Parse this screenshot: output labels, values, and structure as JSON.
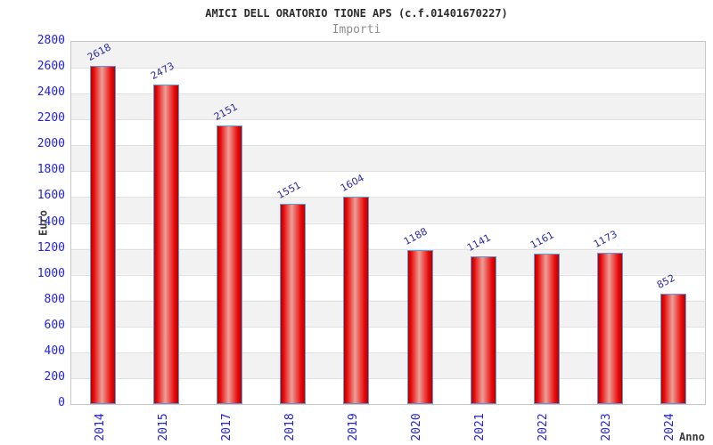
{
  "header": {
    "title": "AMICI DELL ORATORIO TIONE APS (c.f.01401670227)",
    "subtitle": "Importi"
  },
  "chart_data": {
    "type": "bar",
    "title": "AMICI DELL ORATORIO TIONE APS (c.f.01401670227)",
    "subtitle": "Importi",
    "xlabel": "Anno",
    "ylabel": "Euro",
    "categories": [
      "2014",
      "2015",
      "2017",
      "2018",
      "2019",
      "2020",
      "2021",
      "2022",
      "2023",
      "2024"
    ],
    "values": [
      2618,
      2473,
      2151,
      1551,
      1604,
      1188,
      1141,
      1161,
      1173,
      852
    ],
    "ylim": [
      0,
      2800
    ],
    "ytick_step": 200,
    "grid": true,
    "legend_position": "none",
    "background_bands": "alternating gray/white per 200 units",
    "styles": {
      "bar_edge_color": "#b50000",
      "bar_bright_color": "#e90909",
      "bar_highlight_color": "#ec9f97",
      "bar_border_color": "#5b9be0",
      "value_label_color": "#2a2a9c",
      "tick_label_color": "#2222dd",
      "axis_name_color": "#3c3c3c",
      "band_color": "#f2f2f2",
      "gridline_color": "#e0e0e0",
      "title_color": "#2b2b2b",
      "subtitle_color": "#8f8f8f"
    }
  }
}
